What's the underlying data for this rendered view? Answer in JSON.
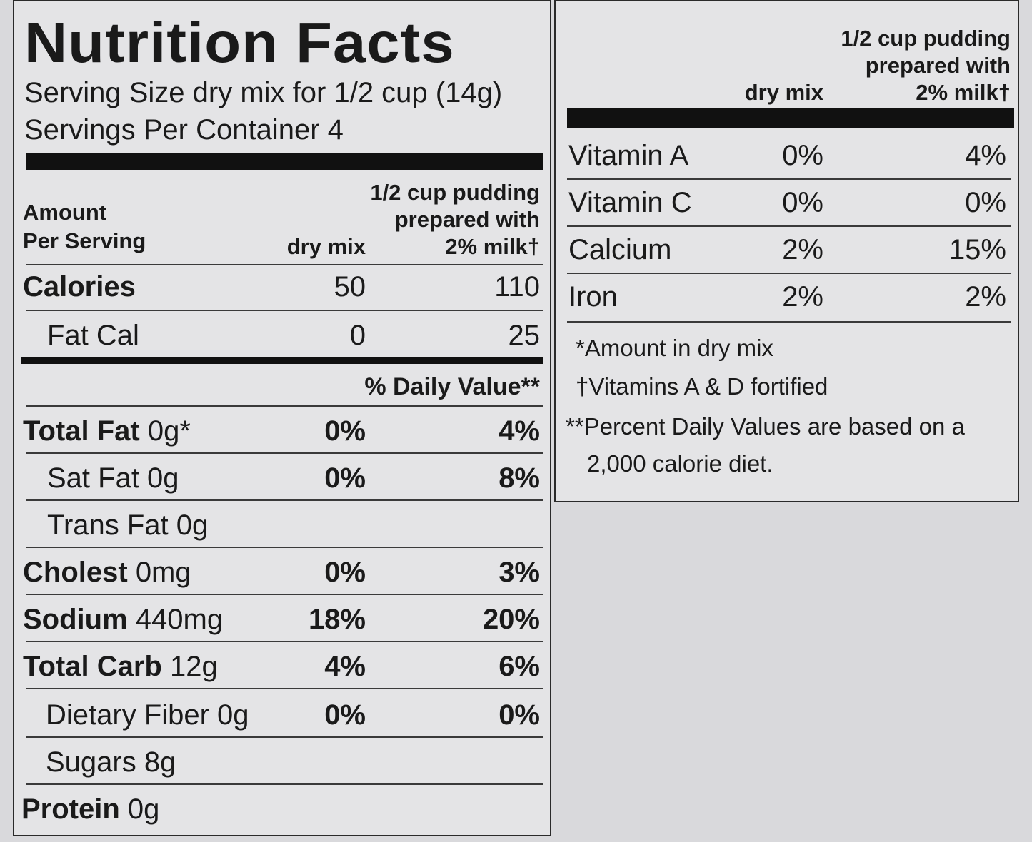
{
  "title": "Nutrition Facts",
  "serving_size": "Serving Size dry mix for 1/2 cup (14g)",
  "servings_per_container": "Servings Per Container 4",
  "columns": {
    "amount_line1": "Amount",
    "amount_line2": "Per Serving",
    "dry_mix": "dry mix",
    "prepared_line1": "1/2 cup pudding",
    "prepared_line2": "prepared with",
    "prepared_line3": "2% milk†"
  },
  "calories": {
    "label": "Calories",
    "dry": "50",
    "prepared": "110"
  },
  "fat_cal": {
    "label": "Fat Cal",
    "dry": "0",
    "prepared": "25"
  },
  "daily_value_header": "% Daily Value**",
  "nutrients": [
    {
      "name": "Total Fat",
      "amount": "0g*",
      "dry": "0%",
      "prepared": "4%",
      "bold": true
    },
    {
      "name": "Sat Fat 0g",
      "amount": "",
      "dry": "0%",
      "prepared": "8%",
      "bold": false
    },
    {
      "name": "Trans Fat 0g",
      "amount": "",
      "dry": "",
      "prepared": "",
      "bold": false
    },
    {
      "name": "Cholest",
      "amount": "0mg",
      "dry": "0%",
      "prepared": "3%",
      "bold": true
    },
    {
      "name": "Sodium",
      "amount": "440mg",
      "dry": "18%",
      "prepared": "20%",
      "bold": true
    },
    {
      "name": "Total Carb",
      "amount": "12g",
      "dry": "4%",
      "prepared": "6%",
      "bold": true
    },
    {
      "name": "Dietary Fiber 0g",
      "amount": "",
      "dry": "0%",
      "prepared": "0%",
      "bold": false
    },
    {
      "name": "Sugars 8g",
      "amount": "",
      "dry": "",
      "prepared": "",
      "bold": false
    },
    {
      "name": "Protein",
      "amount": "0g",
      "dry": "",
      "prepared": "",
      "bold": true
    }
  ],
  "vitamins": [
    {
      "name": "Vitamin A",
      "dry": "0%",
      "prepared": "4%"
    },
    {
      "name": "Vitamin C",
      "dry": "0%",
      "prepared": "0%"
    },
    {
      "name": "Calcium",
      "dry": "2%",
      "prepared": "15%"
    },
    {
      "name": "Iron",
      "dry": "2%",
      "prepared": "2%"
    }
  ],
  "footnotes": {
    "f1": "*Amount in dry mix",
    "f2": "†Vitamins A & D fortified",
    "f3_line1": "**Percent Daily Values are based on a",
    "f3_line2": "2,000 calorie diet."
  }
}
